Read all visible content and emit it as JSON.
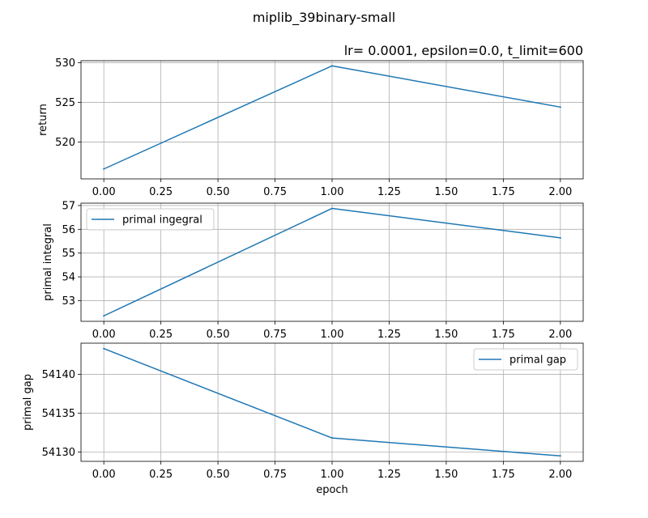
{
  "figure": {
    "suptitle": "miplib_39binary-small"
  },
  "chart_data": [
    {
      "type": "line",
      "title": "lr= 0.0001, epsilon=0.0, t_limit=600",
      "xlabel": "",
      "ylabel": "return",
      "x": [
        0.0,
        1.0,
        2.0
      ],
      "series": [
        {
          "values": [
            516.6,
            529.6,
            524.4
          ],
          "color": "#1f77b4"
        }
      ],
      "xlim": [
        -0.1,
        2.1
      ],
      "ylim": [
        515.35,
        530.25
      ],
      "xticks": [
        0.0,
        0.25,
        0.5,
        0.75,
        1.0,
        1.25,
        1.5,
        1.75,
        2.0
      ],
      "xticklabels": [
        "0.00",
        "0.25",
        "0.50",
        "0.75",
        "1.00",
        "1.25",
        "1.50",
        "1.75",
        "2.00"
      ],
      "yticks": [
        520,
        525,
        530
      ],
      "yticklabels": [
        "520",
        "525",
        "530"
      ],
      "grid": true,
      "legend": null
    },
    {
      "type": "line",
      "title": "",
      "xlabel": "",
      "ylabel": "primal integral",
      "x": [
        0.0,
        1.0,
        2.0
      ],
      "series": [
        {
          "name": "primal ingegral",
          "values": [
            52.36,
            56.88,
            55.64
          ],
          "color": "#1f77b4"
        }
      ],
      "xlim": [
        -0.1,
        2.1
      ],
      "ylim": [
        52.13,
        57.1
      ],
      "xticks": [
        0.0,
        0.25,
        0.5,
        0.75,
        1.0,
        1.25,
        1.5,
        1.75,
        2.0
      ],
      "xticklabels": [
        "0.00",
        "0.25",
        "0.50",
        "0.75",
        "1.00",
        "1.25",
        "1.50",
        "1.75",
        "2.00"
      ],
      "yticks": [
        53,
        54,
        55,
        56,
        57
      ],
      "yticklabels": [
        "53",
        "54",
        "55",
        "56",
        "57"
      ],
      "grid": true,
      "legend": "upper left"
    },
    {
      "type": "line",
      "title": "",
      "xlabel": "epoch",
      "ylabel": "primal gap",
      "x": [
        0.0,
        1.0,
        2.0
      ],
      "series": [
        {
          "name": "primal gap",
          "values": [
            54143.3,
            54131.8,
            54129.5
          ],
          "color": "#1f77b4"
        }
      ],
      "xlim": [
        -0.1,
        2.1
      ],
      "ylim": [
        54128.8,
        54144.0
      ],
      "xticks": [
        0.0,
        0.25,
        0.5,
        0.75,
        1.0,
        1.25,
        1.5,
        1.75,
        2.0
      ],
      "xticklabels": [
        "0.00",
        "0.25",
        "0.50",
        "0.75",
        "1.00",
        "1.25",
        "1.50",
        "1.75",
        "2.00"
      ],
      "yticks": [
        54130,
        54135,
        54140
      ],
      "yticklabels": [
        "54130",
        "54135",
        "54140"
      ],
      "grid": true,
      "legend": "upper right"
    }
  ]
}
